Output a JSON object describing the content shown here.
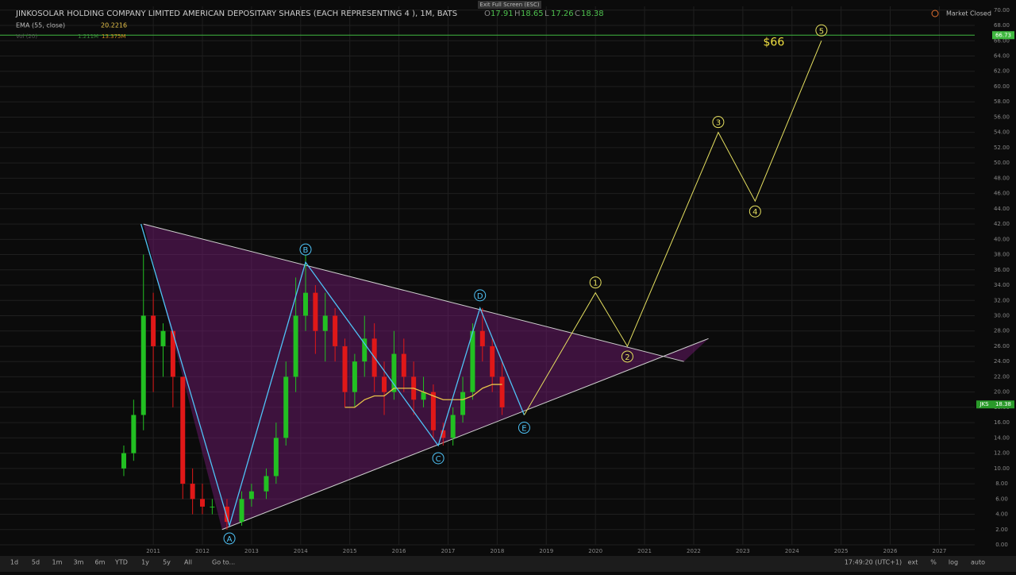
{
  "header": {
    "title": "JINKOSOLAR HOLDING COMPANY LIMITED AMERICAN DEPOSITARY SHARES (EACH REPRESENTING 4 ), 1M, BATS",
    "exit_full_screen": "Exit Full Screen (ESC)",
    "ohlc": [
      {
        "key": "O",
        "value": "17.91"
      },
      {
        "key": "H",
        "value": "18.65"
      },
      {
        "key": "L",
        "value": "17.26"
      },
      {
        "key": "C",
        "value": "18.38"
      }
    ],
    "ema_label": "EMA (55, close)",
    "ema_value": "20.2216",
    "vol_label": "Vol (20)",
    "vol_value": "1.211M",
    "vol_ma": "13.375M",
    "market_status": "Market Closed"
  },
  "toolbar": {
    "ranges": [
      "1d",
      "5d",
      "1m",
      "3m",
      "6m",
      "YTD",
      "1y",
      "5y",
      "All",
      "Go to..."
    ],
    "time": "17:49:20 (UTC+1)",
    "options": [
      "ext",
      "%",
      "log",
      "auto"
    ]
  },
  "chart_data": {
    "type": "candlestick",
    "up_color": "#22c022",
    "down_color": "#e01818",
    "x": [
      2010.4,
      2010.6,
      2010.8,
      2011.0,
      2011.2,
      2011.4,
      2011.6,
      2011.8,
      2012.0,
      2012.2,
      2012.5,
      2012.8,
      2013.0,
      2013.3,
      2013.5,
      2013.7,
      2013.9,
      2014.1,
      2014.3,
      2014.5,
      2014.7,
      2014.9,
      2015.1,
      2015.3,
      2015.5,
      2015.7,
      2015.9,
      2016.1,
      2016.3,
      2016.5,
      2016.7,
      2016.9,
      2017.1,
      2017.3,
      2017.5,
      2017.7,
      2017.9,
      2018.1
    ],
    "open": [
      10,
      12,
      17,
      30,
      26,
      28,
      22,
      8,
      6,
      5,
      5,
      3,
      6,
      7,
      9,
      14,
      22,
      30,
      33,
      28,
      30,
      26,
      20,
      24,
      27,
      22,
      20,
      25,
      22,
      19,
      20,
      15,
      14,
      17,
      20,
      28,
      26,
      22
    ],
    "high": [
      13,
      19,
      38,
      33,
      29,
      28,
      22,
      10,
      8,
      6,
      6,
      7,
      8,
      10,
      16,
      24,
      35,
      38,
      34,
      33,
      31,
      27,
      25,
      30,
      29,
      24,
      28,
      27,
      24,
      22,
      21,
      16,
      18,
      22,
      29,
      31,
      27,
      24
    ],
    "low": [
      9,
      11,
      15,
      20,
      22,
      18,
      6,
      4,
      4,
      4,
      2,
      2.5,
      5,
      6,
      8,
      13,
      20,
      28,
      25,
      24,
      24,
      18,
      18,
      22,
      20,
      17,
      19,
      20,
      17,
      18,
      14,
      13,
      13,
      16,
      19,
      24,
      20,
      17
    ],
    "close": [
      12,
      17,
      30,
      26,
      28,
      22,
      8,
      6,
      5,
      5,
      3,
      6,
      7,
      9,
      14,
      22,
      30,
      33,
      28,
      30,
      26,
      20,
      24,
      27,
      22,
      20,
      25,
      22,
      19,
      20,
      15,
      14,
      17,
      20,
      28,
      26,
      22,
      18
    ],
    "ema": {
      "name": "EMA (55, close)",
      "color": "#e8c34a",
      "values": [
        null,
        null,
        null,
        null,
        null,
        null,
        null,
        null,
        null,
        null,
        null,
        null,
        null,
        null,
        null,
        null,
        null,
        null,
        null,
        null,
        null,
        18,
        18,
        19,
        19.5,
        19.5,
        20.5,
        20.5,
        20.5,
        20,
        19.5,
        19,
        19,
        19,
        19.5,
        20.5,
        21,
        21
      ]
    },
    "xlim": [
      2007.88,
      2027.72
    ],
    "ylim": [
      0,
      70.5
    ],
    "xticks": [
      2011,
      2012,
      2013,
      2014,
      2015,
      2016,
      2017,
      2018,
      2019,
      2020,
      2021,
      2022,
      2023,
      2024,
      2025,
      2026,
      2027
    ],
    "yticks": [
      {
        "value": 0,
        "label": "0.00"
      },
      {
        "value": 2,
        "label": "2.00"
      },
      {
        "value": 4,
        "label": "4.00"
      },
      {
        "value": 6,
        "label": "6.00"
      },
      {
        "value": 8,
        "label": "8.00"
      },
      {
        "value": 10,
        "label": "10.00"
      },
      {
        "value": 12,
        "label": "12.00"
      },
      {
        "value": 14,
        "label": "14.00"
      },
      {
        "value": 16,
        "label": "16.00"
      },
      {
        "value": 18,
        "label": "18.00"
      },
      {
        "value": 20,
        "label": "20.00"
      },
      {
        "value": 22,
        "label": "22.00"
      },
      {
        "value": 24,
        "label": "24.00"
      },
      {
        "value": 26,
        "label": "26.00"
      },
      {
        "value": 28,
        "label": "28.00"
      },
      {
        "value": 30,
        "label": "30.00"
      },
      {
        "value": 32,
        "label": "32.00"
      },
      {
        "value": 34,
        "label": "34.00"
      },
      {
        "value": 36,
        "label": "36.00"
      },
      {
        "value": 38,
        "label": "38.00"
      },
      {
        "value": 40,
        "label": "40.00"
      },
      {
        "value": 42,
        "label": "42.00"
      },
      {
        "value": 44,
        "label": "44.00"
      },
      {
        "value": 46,
        "label": "46.00"
      },
      {
        "value": 48,
        "label": "48.00"
      },
      {
        "value": 50,
        "label": "50.00"
      },
      {
        "value": 52,
        "label": "52.00"
      },
      {
        "value": 54,
        "label": "54.00"
      },
      {
        "value": 56,
        "label": "56.00"
      },
      {
        "value": 58,
        "label": "58.00"
      },
      {
        "value": 60,
        "label": "60.00"
      },
      {
        "value": 62,
        "label": "62.00"
      },
      {
        "value": 64,
        "label": "64.00"
      },
      {
        "value": 66,
        "label": "66.00"
      },
      {
        "value": 68,
        "label": "68.00"
      },
      {
        "value": 70,
        "label": "70.00"
      }
    ],
    "grid": true,
    "price_line": {
      "value": 66.73,
      "label": "66.73",
      "color": "#3fb83f"
    },
    "last_price": {
      "symbol": "JKS",
      "value": 18.38,
      "label": "18.38",
      "color": "#2a9a2a"
    },
    "triangle": {
      "color": "#cfcfcf",
      "fill": "#7a1a7a",
      "upper": {
        "x": [
          2010.8,
          2021.8
        ],
        "y": [
          42,
          24
        ]
      },
      "lower": {
        "x": [
          2012.4,
          2022.3
        ],
        "y": [
          2,
          27
        ]
      }
    },
    "waves": {
      "color": "#4fc3f7",
      "start": {
        "x": 2010.75,
        "y": 42
      },
      "points": [
        {
          "label": "A",
          "x": 2012.55,
          "y": 2.5
        },
        {
          "label": "B",
          "x": 2014.1,
          "y": 37
        },
        {
          "label": "C",
          "x": 2016.8,
          "y": 13
        },
        {
          "label": "D",
          "x": 2017.65,
          "y": 31
        },
        {
          "label": "E",
          "x": 2018.55,
          "y": 17
        }
      ]
    },
    "projection": {
      "color": "#e6e060",
      "points": [
        {
          "label": "1",
          "x": 2020.0,
          "y": 33
        },
        {
          "label": "2",
          "x": 2020.65,
          "y": 26
        },
        {
          "label": "3",
          "x": 2022.5,
          "y": 54
        },
        {
          "label": "4",
          "x": 2023.25,
          "y": 45
        },
        {
          "label": "5",
          "x": 2024.6,
          "y": 66
        }
      ],
      "target": "$66"
    }
  }
}
